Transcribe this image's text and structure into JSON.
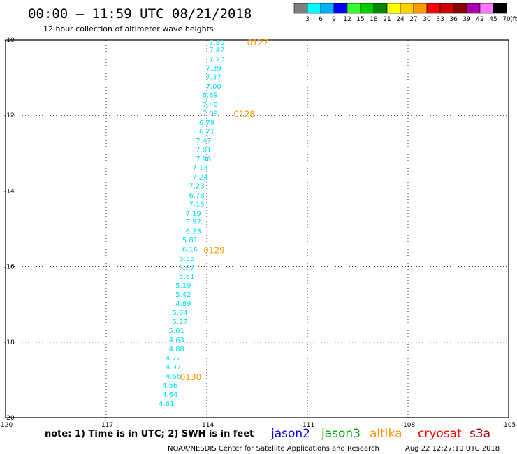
{
  "header": {
    "title": "00:00 – 11:59 UTC 08/21/2018",
    "subtitle": "12 hour collection of altimeter wave heights"
  },
  "color_scale": {
    "unit": "(ft)",
    "labels": [
      "3",
      "6",
      "9",
      "12",
      "15",
      "18",
      "21",
      "24",
      "27",
      "30",
      "33",
      "36",
      "39",
      "42",
      "45",
      "70"
    ],
    "colors": [
      "#7f7f7f",
      "#00ffff",
      "#00b0ff",
      "#0000ff",
      "#33ff33",
      "#00cc00",
      "#008800",
      "#ffff00",
      "#ffd000",
      "#ff9900",
      "#ff0000",
      "#cc0000",
      "#880000",
      "#aa00aa",
      "#ff77ff",
      "#000000"
    ]
  },
  "note": "note: 1) Time is in UTC; 2) SWH is in feet",
  "satellites": [
    {
      "name": "jason2",
      "color": "#0000ff"
    },
    {
      "name": "jason3",
      "color": "#00aa00"
    },
    {
      "name": "altika",
      "color": "#ff9900"
    },
    {
      "name": "cryosat",
      "color": "#ff0000"
    },
    {
      "name": "s3a",
      "color": "#aa0000"
    }
  ],
  "footer": {
    "credit": "NOAA/NESDIS Center for Satellite Applications and Research",
    "timestamp": "Aug 22 12:27:10 UTC 2018"
  },
  "chart_data": {
    "type": "scatter",
    "xlim": [
      -120,
      -105
    ],
    "ylim": [
      -20,
      -10
    ],
    "x_ticks": [
      -120,
      -117,
      -114,
      -111,
      -108,
      -105
    ],
    "y_ticks": [
      -10,
      -12,
      -14,
      -16,
      -18,
      -20
    ],
    "grid": true,
    "point_color": "#00e0f0",
    "label_color": "#ff9900",
    "points": [
      {
        "lon": -113.7,
        "lat": -10.06,
        "swh": "7.80"
      },
      {
        "lon": -113.7,
        "lat": -10.26,
        "swh": "7.42"
      },
      {
        "lon": -113.7,
        "lat": -10.51,
        "swh": "7.70"
      },
      {
        "lon": -113.8,
        "lat": -10.74,
        "swh": "7.39"
      },
      {
        "lon": -113.8,
        "lat": -10.97,
        "swh": "7.37"
      },
      {
        "lon": -113.8,
        "lat": -11.22,
        "swh": "7.00"
      },
      {
        "lon": -113.9,
        "lat": -11.45,
        "swh": "6.89"
      },
      {
        "lon": -113.9,
        "lat": -11.7,
        "swh": "7.40"
      },
      {
        "lon": -113.9,
        "lat": -11.93,
        "swh": "7.09"
      },
      {
        "lon": -114.0,
        "lat": -12.18,
        "swh": "6.79"
      },
      {
        "lon": -114.0,
        "lat": -12.41,
        "swh": "6.71"
      },
      {
        "lon": -114.1,
        "lat": -12.66,
        "swh": "7.47"
      },
      {
        "lon": -114.1,
        "lat": -12.89,
        "swh": "7.81"
      },
      {
        "lon": -114.1,
        "lat": -13.14,
        "swh": "7.96"
      },
      {
        "lon": -114.2,
        "lat": -13.37,
        "swh": "7.13"
      },
      {
        "lon": -114.2,
        "lat": -13.62,
        "swh": "7.24"
      },
      {
        "lon": -114.3,
        "lat": -13.85,
        "swh": "7.23"
      },
      {
        "lon": -114.3,
        "lat": -14.1,
        "swh": "6.78"
      },
      {
        "lon": -114.3,
        "lat": -14.33,
        "swh": "7.15"
      },
      {
        "lon": -114.4,
        "lat": -14.58,
        "swh": "7.19"
      },
      {
        "lon": -114.4,
        "lat": -14.81,
        "swh": "5.92"
      },
      {
        "lon": -114.4,
        "lat": -15.06,
        "swh": "6.23"
      },
      {
        "lon": -114.5,
        "lat": -15.29,
        "swh": "5.81"
      },
      {
        "lon": -114.5,
        "lat": -15.54,
        "swh": "6.16"
      },
      {
        "lon": -114.6,
        "lat": -15.77,
        "swh": "6.35"
      },
      {
        "lon": -114.6,
        "lat": -16.02,
        "swh": "5.67"
      },
      {
        "lon": -114.6,
        "lat": -16.25,
        "swh": "5.61"
      },
      {
        "lon": -114.7,
        "lat": -16.49,
        "swh": "5.19"
      },
      {
        "lon": -114.7,
        "lat": -16.73,
        "swh": "5.42"
      },
      {
        "lon": -114.7,
        "lat": -16.97,
        "swh": "4.89"
      },
      {
        "lon": -114.8,
        "lat": -17.21,
        "swh": "5.64"
      },
      {
        "lon": -114.8,
        "lat": -17.45,
        "swh": "5.27"
      },
      {
        "lon": -114.9,
        "lat": -17.69,
        "swh": "5.01"
      },
      {
        "lon": -114.9,
        "lat": -17.93,
        "swh": "4.63"
      },
      {
        "lon": -114.9,
        "lat": -18.17,
        "swh": "4.88"
      },
      {
        "lon": -115.0,
        "lat": -18.41,
        "swh": "4.72"
      },
      {
        "lon": -115.0,
        "lat": -18.65,
        "swh": "4.97"
      },
      {
        "lon": -115.0,
        "lat": -18.89,
        "swh": "4.66"
      },
      {
        "lon": -115.1,
        "lat": -19.13,
        "swh": "4.56"
      },
      {
        "lon": -115.1,
        "lat": -19.37,
        "swh": "4.64"
      },
      {
        "lon": -115.2,
        "lat": -19.61,
        "swh": "4.61"
      }
    ],
    "time_labels": [
      {
        "lon": -112.8,
        "lat": -10.06,
        "text": "0127"
      },
      {
        "lon": -113.2,
        "lat": -11.95,
        "text": "0128"
      },
      {
        "lon": -114.1,
        "lat": -15.55,
        "text": "0129"
      },
      {
        "lon": -114.8,
        "lat": -18.91,
        "text": "0130"
      }
    ]
  }
}
